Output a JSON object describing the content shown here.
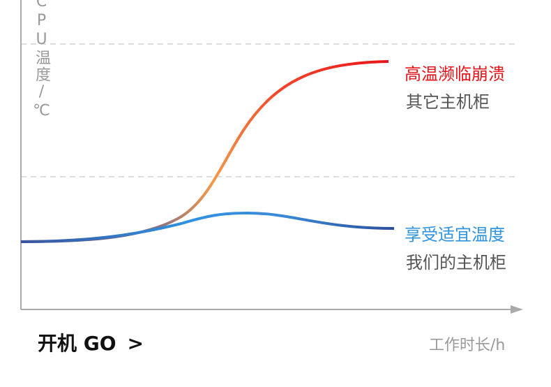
{
  "y_axis_label": "CPU温度/℃",
  "x_axis_label": "工作时长/h",
  "hot": {
    "title": "高温濒临崩溃",
    "subtitle": "其它主机柜"
  },
  "cool": {
    "title": "享受适宜温度",
    "subtitle": "我们的主机柜"
  },
  "button": {
    "label": "开机 GO",
    "arrow": ">"
  }
}
